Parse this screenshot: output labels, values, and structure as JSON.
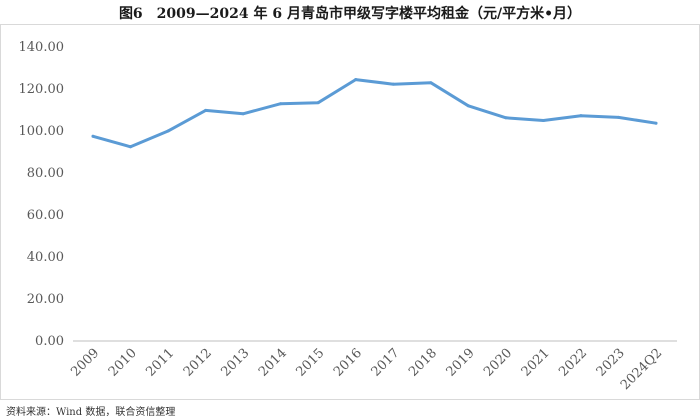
{
  "figure": {
    "title": "图6　2009—2024 年 6 月青岛市甲级写字楼平均租金（元/平方米•月）",
    "source": "资料来源：Wind 数据，联合资信整理"
  },
  "chart_data": {
    "type": "line",
    "title": "图6　2009—2024 年 6 月青岛市甲级写字楼平均租金（元/平方米•月）",
    "xlabel": "",
    "ylabel": "",
    "categories": [
      "2009",
      "2010",
      "2011",
      "2012",
      "2013",
      "2014",
      "2015",
      "2016",
      "2017",
      "2018",
      "2019",
      "2020",
      "2021",
      "2022",
      "2023",
      "2024Q2"
    ],
    "series": [
      {
        "values": [
          97.5,
          92.5,
          100.0,
          109.8,
          108.2,
          113.0,
          113.5,
          124.5,
          122.3,
          123.0,
          112.0,
          106.3,
          105.0,
          107.3,
          106.5,
          103.7
        ]
      }
    ],
    "ylim": [
      0,
      140
    ],
    "yticks": [
      "0.00",
      "20.00",
      "40.00",
      "60.00",
      "80.00",
      "100.00",
      "120.00",
      "140.00"
    ],
    "grid": false,
    "legend": "none",
    "line_color": "#5b9bd5"
  }
}
